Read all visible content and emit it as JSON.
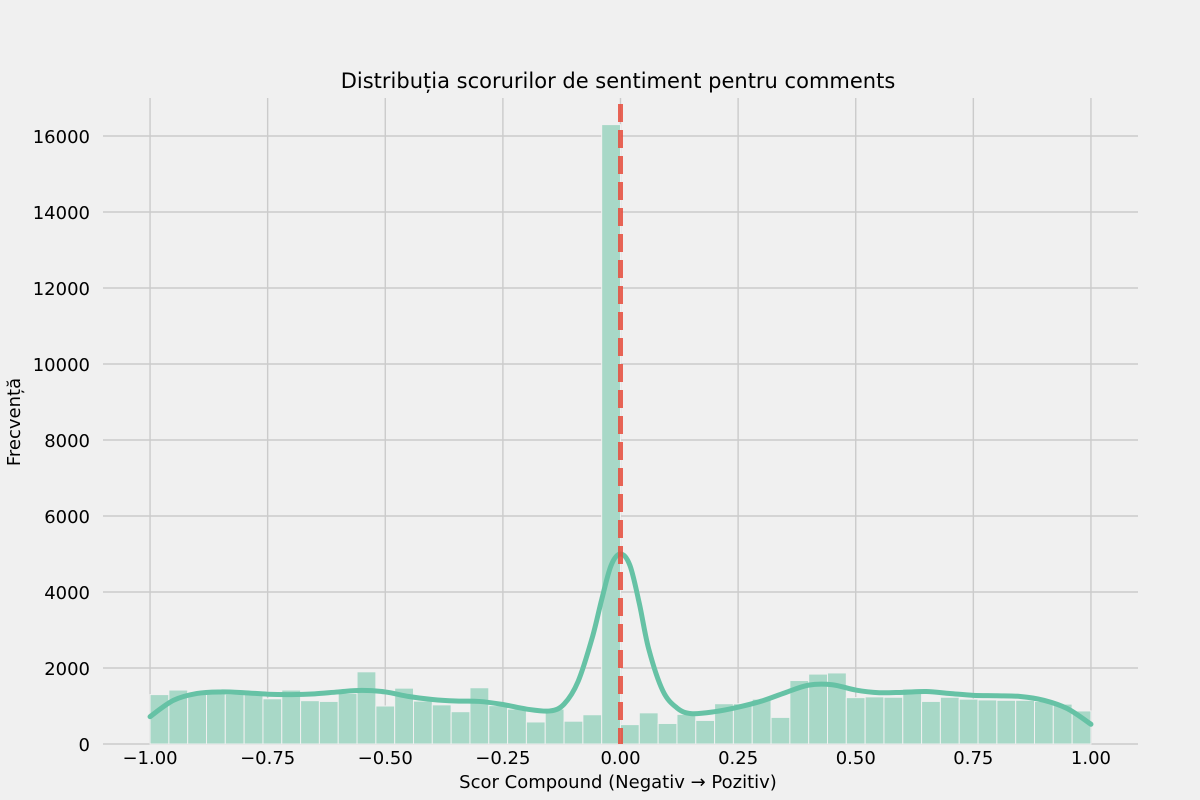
{
  "chart_data": {
    "type": "bar",
    "title": "Distribuția scorurilor de sentiment pentru comments",
    "xlabel": "Scor Compound (Negativ → Pozitiv)",
    "ylabel": "Frecvență",
    "xlim": [
      -1.1,
      1.1
    ],
    "ylim": [
      0,
      17000
    ],
    "xticks": [
      -1.0,
      -0.75,
      -0.5,
      -0.25,
      0.0,
      0.25,
      0.5,
      0.75,
      1.0
    ],
    "xtick_labels": [
      "−1.00",
      "−0.75",
      "−0.50",
      "−0.25",
      "0.00",
      "0.25",
      "0.50",
      "0.75",
      "1.00"
    ],
    "yticks": [
      0,
      2000,
      4000,
      6000,
      8000,
      10000,
      12000,
      14000,
      16000
    ],
    "ytick_labels": [
      "0",
      "2000",
      "4000",
      "6000",
      "8000",
      "10000",
      "12000",
      "14000",
      "16000"
    ],
    "grid": true,
    "bin_edges": [
      -1.0,
      -0.96,
      -0.92,
      -0.88,
      -0.84,
      -0.8,
      -0.76,
      -0.72,
      -0.68,
      -0.64,
      -0.6,
      -0.56,
      -0.52,
      -0.48,
      -0.44,
      -0.4,
      -0.36,
      -0.32,
      -0.28,
      -0.24,
      -0.2,
      -0.16,
      -0.12,
      -0.08,
      -0.04,
      0.0,
      0.04,
      0.08,
      0.12,
      0.16,
      0.2,
      0.24,
      0.28,
      0.32,
      0.36,
      0.4,
      0.44,
      0.48,
      0.52,
      0.56,
      0.6,
      0.64,
      0.68,
      0.72,
      0.76,
      0.8,
      0.84,
      0.88,
      0.92,
      0.96,
      1.0
    ],
    "counts": [
      1300,
      1420,
      1350,
      1330,
      1310,
      1330,
      1190,
      1420,
      1140,
      1120,
      1330,
      1900,
      1000,
      1470,
      1130,
      1030,
      850,
      1480,
      1010,
      920,
      580,
      920,
      600,
      770,
      16300,
      510,
      820,
      540,
      780,
      620,
      1060,
      1060,
      1180,
      700,
      1670,
      1840,
      1870,
      1220,
      1240,
      1230,
      1450,
      1120,
      1230,
      1180,
      1160,
      1150,
      1150,
      1120,
      1050,
      870
    ],
    "kde": {
      "x": [
        -1.0,
        -0.95,
        -0.9,
        -0.85,
        -0.8,
        -0.75,
        -0.7,
        -0.65,
        -0.6,
        -0.55,
        -0.5,
        -0.45,
        -0.4,
        -0.35,
        -0.3,
        -0.25,
        -0.2,
        -0.15,
        -0.12,
        -0.09,
        -0.06,
        -0.04,
        -0.02,
        0.0,
        0.02,
        0.04,
        0.06,
        0.09,
        0.12,
        0.15,
        0.2,
        0.25,
        0.3,
        0.35,
        0.4,
        0.45,
        0.5,
        0.55,
        0.6,
        0.65,
        0.7,
        0.75,
        0.8,
        0.85,
        0.9,
        0.95,
        1.0
      ],
      "y": [
        720,
        1150,
        1330,
        1370,
        1350,
        1310,
        1300,
        1320,
        1370,
        1410,
        1370,
        1250,
        1170,
        1130,
        1120,
        1040,
        920,
        870,
        1050,
        1650,
        2800,
        3800,
        4700,
        5000,
        4700,
        3700,
        2500,
        1400,
        950,
        800,
        850,
        970,
        1130,
        1350,
        1550,
        1560,
        1420,
        1350,
        1360,
        1380,
        1330,
        1280,
        1270,
        1250,
        1150,
        930,
        520
      ]
    },
    "reference_line": {
      "x": 0.0,
      "style": "dashed",
      "color": "#e74c3c"
    },
    "colors": {
      "bar": "#a8d8c7",
      "kde": "#66c2a5",
      "background": "#f0f0f0",
      "grid": "#cbcbcb"
    }
  }
}
